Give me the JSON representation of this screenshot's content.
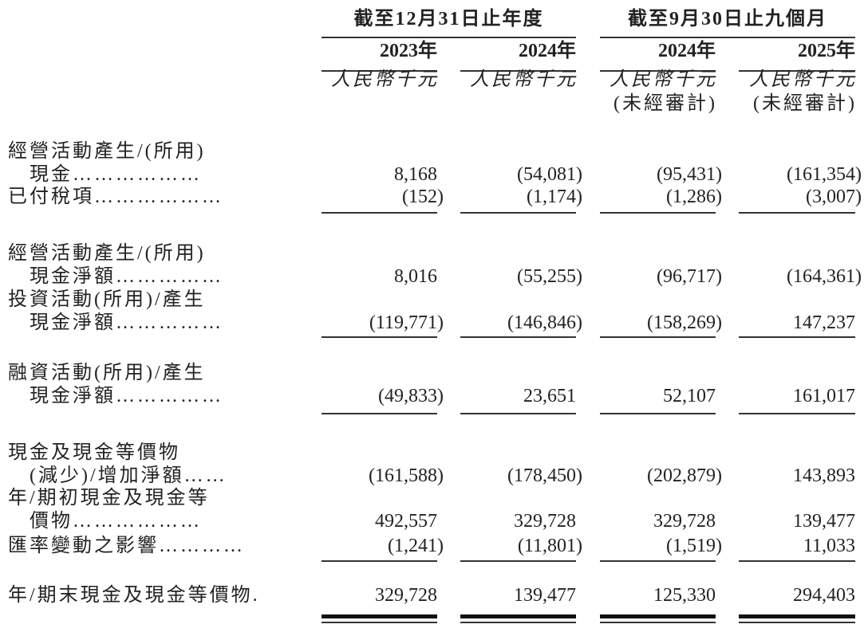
{
  "header": {
    "groups": [
      "截至12月31日止年度",
      "截至9月30日止九個月"
    ],
    "years": [
      "2023年",
      "2024年",
      "2024年",
      "2025年"
    ],
    "units": [
      "人民幣千元",
      "人民幣千元",
      "人民幣千元",
      "人民幣千元"
    ],
    "unaudited": [
      "",
      "",
      "(未經審計)",
      "(未經審計)"
    ]
  },
  "rows": [
    {
      "label": [
        "經營活動產生/(所用)",
        "　現金………………"
      ],
      "values": [
        "8,168",
        "(54,081)",
        "(95,431)",
        "(161,354)"
      ]
    },
    {
      "label": [
        "已付稅項………………"
      ],
      "values": [
        "(152)",
        "(1,174)",
        "(1,286)",
        "(3,007)"
      ]
    },
    {
      "label": [
        "經營活動產生/(所用)",
        "　現金淨額……………"
      ],
      "values": [
        "8,016",
        "(55,255)",
        "(96,717)",
        "(164,361)"
      ]
    },
    {
      "label": [
        "投資活動(所用)/產生",
        "　現金淨額……………"
      ],
      "values": [
        "(119,771)",
        "(146,846)",
        "(158,269)",
        "147,237"
      ]
    },
    {
      "label": [
        "融資活動(所用)/產生",
        "　現金淨額……………"
      ],
      "values": [
        "(49,833)",
        "23,651",
        "52,107",
        "161,017"
      ]
    },
    {
      "label": [
        "現金及現金等價物",
        "　(減少)/增加淨額……"
      ],
      "values": [
        "(161,588)",
        "(178,450)",
        "(202,879)",
        "143,893"
      ]
    },
    {
      "label": [
        "年/期初現金及現金等",
        "　價物………………"
      ],
      "values": [
        "492,557",
        "329,728",
        "329,728",
        "139,477"
      ]
    },
    {
      "label": [
        "匯率變動之影響…………"
      ],
      "values": [
        "(1,241)",
        "(11,801)",
        "(1,519)",
        "11,033"
      ]
    },
    {
      "label": [
        "年/期末現金及現金等價物."
      ],
      "values": [
        "329,728",
        "139,477",
        "125,330",
        "294,403"
      ]
    }
  ]
}
